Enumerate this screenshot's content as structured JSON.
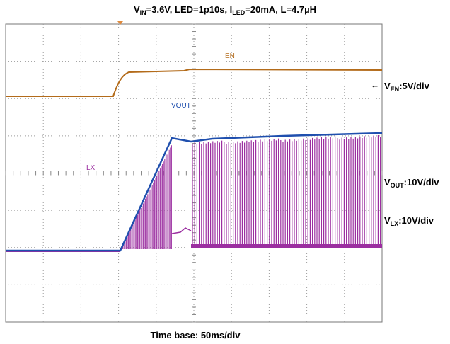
{
  "header": {
    "title": [
      "V",
      "IN",
      "=3.6V, LED=1p10s, I",
      "LED",
      "=20mA, L=4.7µH"
    ]
  },
  "channels": [
    {
      "label": "EN",
      "scale": [
        "V",
        "EN",
        ":5V/div"
      ]
    },
    {
      "label": "VOUT",
      "scale": [
        "V",
        "OUT",
        ":10V/div"
      ]
    },
    {
      "label": "LX",
      "scale": [
        "V",
        "LX",
        ":10V/div"
      ]
    }
  ],
  "footer": "Time base: 50ms/div"
}
